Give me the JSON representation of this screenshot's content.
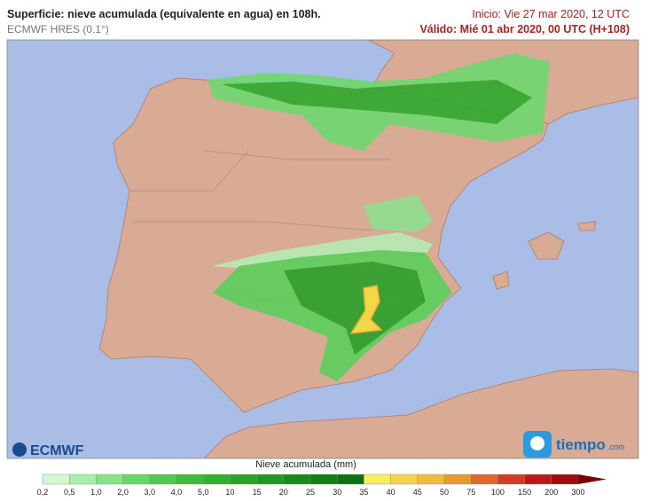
{
  "header": {
    "title": "Superficie: nieve acumulada (equivalente en agua) en 108h.",
    "model": "ECMWF HRES (0.1°)",
    "start": "Inicio: Vie 27 mar 2020, 12 UTC",
    "valid": "Válido: Mié 01 abr 2020, 00 UTC (H+108)"
  },
  "logos": {
    "left": "ECMWF",
    "right": "tiempo",
    "right_suffix": ".com"
  },
  "legend": {
    "title": "Nieve acumulada (mm)",
    "labels": [
      "0,2",
      "0,5",
      "1,0",
      "2,0",
      "3,0",
      "4,0",
      "5,0",
      "10",
      "15",
      "20",
      "25",
      "30",
      "35",
      "40",
      "45",
      "50",
      "75",
      "100",
      "150",
      "200",
      "300"
    ],
    "colors": [
      "#d2f7d2",
      "#a8efa8",
      "#86e486",
      "#66d866",
      "#4ccb4c",
      "#3bbf3b",
      "#2fb22f",
      "#26a526",
      "#1f991f",
      "#188c18",
      "#127f12",
      "#0d720d",
      "#f6ee5c",
      "#f3d64a",
      "#efbc3c",
      "#e79a30",
      "#de6a2a",
      "#d03c24",
      "#bd1818",
      "#9e0c0c"
    ],
    "arrow_color": "#7a0000"
  }
}
